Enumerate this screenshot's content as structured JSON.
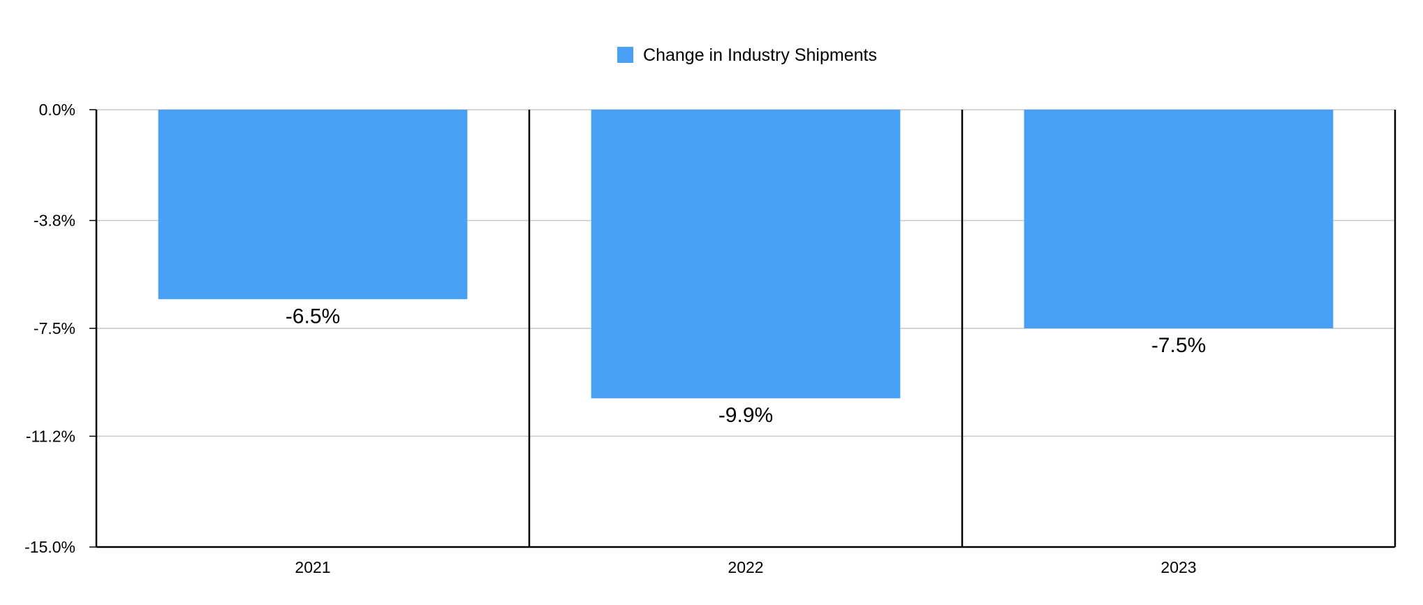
{
  "chart_data": {
    "type": "bar",
    "categories": [
      "2021",
      "2022",
      "2023"
    ],
    "series": [
      {
        "name": "Change in Industry Shipments",
        "values": [
          -6.5,
          -9.9,
          -7.5
        ],
        "labels": [
          "-6.5%",
          "-9.9%",
          "-7.5%"
        ],
        "color": "#4aa0f5"
      }
    ],
    "yticks": [
      0.0,
      -3.8,
      -7.5,
      -11.2,
      -15.0
    ],
    "ytick_labels": [
      "0.0%",
      "-3.8%",
      "-7.5%",
      "-11.2%",
      "-15.0%"
    ],
    "ylim": [
      -15.0,
      0.0
    ],
    "grid": true,
    "legend_position": "top-center",
    "gridline_color": "#c8c8c8",
    "axis_color": "#000000"
  }
}
